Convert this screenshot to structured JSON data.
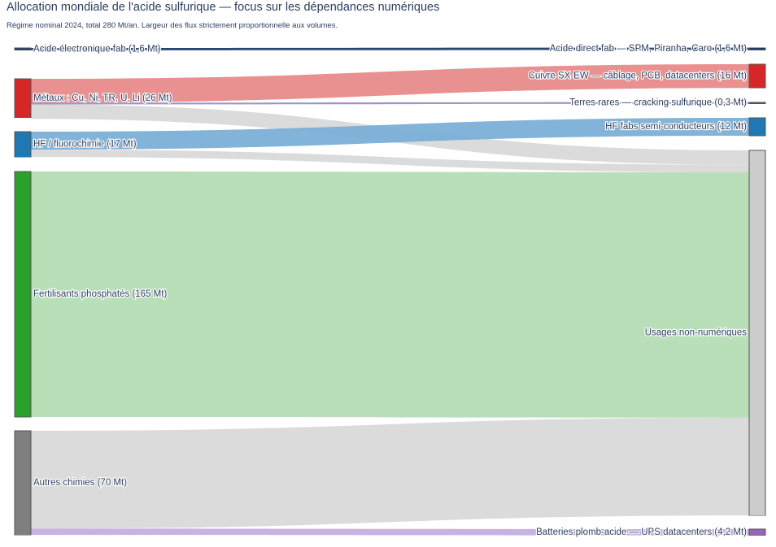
{
  "title": "Allocation mondiale de l'acide sulfurique — focus sur les dépendances numériques",
  "subtitle": "Régime nominal 2024, total 280 Mt/an. Largeur des flux strictement proportionnelle aux volumes.",
  "chart_data": {
    "type": "sankey",
    "unit": "Mt/an",
    "source_nodes": [
      {
        "id": "src-elec",
        "label": "Acide électronique fab (1,6 Mt)",
        "value": 1.6,
        "color": "#1f3d66"
      },
      {
        "id": "src-metaux",
        "label": "Métaux : Cu, Ni, TR, U, Li (26 Mt)",
        "value": 26,
        "color": "#d62728"
      },
      {
        "id": "src-hf",
        "label": "HF / fluorochimie (17 Mt)",
        "value": 17,
        "color": "#1f77b4"
      },
      {
        "id": "src-fert",
        "label": "Fertilisants phosphatés (165 Mt)",
        "value": 165,
        "color": "#2ca02c"
      },
      {
        "id": "src-autres",
        "label": "Autres chimies (70 Mt)",
        "value": 70,
        "color": "#7f7f7f"
      }
    ],
    "target_nodes": [
      {
        "id": "tgt-spm",
        "label": "Acide direct fab — SPM, Piranha, Caro (1,6 Mt)",
        "value": 1.6,
        "color": "#1f3d66"
      },
      {
        "id": "tgt-cuivre",
        "label": "Cuivre SX-EW — câblage, PCB, datacenters (16 Mt)",
        "value": 16,
        "color": "#d62728"
      },
      {
        "id": "tgt-tr",
        "label": "Terres rares — cracking sulfurique (0,3 Mt)",
        "value": 0.3,
        "color": "#555555"
      },
      {
        "id": "tgt-hf",
        "label": "HF fabs semi-conducteurs (12 Mt)",
        "value": 12,
        "color": "#1f77b4"
      },
      {
        "id": "tgt-nonnum",
        "label": "Usages non-numériques",
        "value": 245.5,
        "color": "#cccccc"
      },
      {
        "id": "tgt-ups",
        "label": "Batteries plomb-acide — UPS datacenters (4,2 Mt)",
        "value": 4.2,
        "color": "#9467bd"
      }
    ],
    "links": [
      {
        "source": "src-elec",
        "target": "tgt-spm",
        "value": 1.6,
        "color": "#1f3d66"
      },
      {
        "source": "src-metaux",
        "target": "tgt-cuivre",
        "value": 16,
        "color": "#e88a8a"
      },
      {
        "source": "src-metaux",
        "target": "tgt-tr",
        "value": 0.3,
        "color": "#9c8cc8"
      },
      {
        "source": "src-metaux",
        "target": "tgt-nonnum",
        "value": 9.7,
        "color": "#d9d9d9"
      },
      {
        "source": "src-hf",
        "target": "tgt-hf",
        "value": 12,
        "color": "#7bafd6"
      },
      {
        "source": "src-hf",
        "target": "tgt-nonnum",
        "value": 5,
        "color": "#d9d9d9"
      },
      {
        "source": "src-fert",
        "target": "tgt-nonnum",
        "value": 165,
        "color": "#b5ddb5"
      },
      {
        "source": "src-autres",
        "target": "tgt-nonnum",
        "value": 65.8,
        "color": "#d9d9d9"
      },
      {
        "source": "src-autres",
        "target": "tgt-ups",
        "value": 4.2,
        "color": "#c5aee0"
      }
    ]
  }
}
